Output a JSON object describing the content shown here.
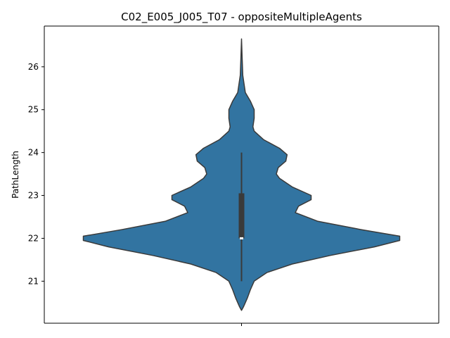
{
  "chart_data": {
    "type": "violin",
    "title": "C02_E005_J005_T07 - oppositeMultipleAgents",
    "xlabel": "",
    "ylabel": "PathLength",
    "ylim": [
      20.02,
      26.95
    ],
    "yticks": [
      21,
      22,
      23,
      24,
      25,
      26
    ],
    "grid": false,
    "legend": "none",
    "colors": {
      "violin": "#3274a1",
      "edge": "#3a3a3a",
      "box": "#3a3a3a",
      "median": "#ffffff"
    },
    "series": [
      {
        "density_profile": [
          [
            20.32,
            0.0
          ],
          [
            20.4,
            0.03
          ],
          [
            20.6,
            0.09
          ],
          [
            20.8,
            0.14
          ],
          [
            21.0,
            0.2
          ],
          [
            21.2,
            0.4
          ],
          [
            21.4,
            0.8
          ],
          [
            21.6,
            1.4
          ],
          [
            21.8,
            2.1
          ],
          [
            21.95,
            2.5
          ],
          [
            22.05,
            2.5
          ],
          [
            22.2,
            1.9
          ],
          [
            22.4,
            1.2
          ],
          [
            22.6,
            0.85
          ],
          [
            22.75,
            0.9
          ],
          [
            22.9,
            1.1
          ],
          [
            23.0,
            1.1
          ],
          [
            23.2,
            0.8
          ],
          [
            23.4,
            0.6
          ],
          [
            23.5,
            0.55
          ],
          [
            23.65,
            0.58
          ],
          [
            23.8,
            0.7
          ],
          [
            23.95,
            0.72
          ],
          [
            24.1,
            0.6
          ],
          [
            24.3,
            0.35
          ],
          [
            24.5,
            0.2
          ],
          [
            24.6,
            0.18
          ],
          [
            24.8,
            0.2
          ],
          [
            25.0,
            0.2
          ],
          [
            25.2,
            0.14
          ],
          [
            25.4,
            0.06
          ],
          [
            25.6,
            0.04
          ],
          [
            25.8,
            0.02
          ],
          [
            26.2,
            0.01
          ],
          [
            26.65,
            0.0
          ]
        ],
        "whisker_low": 21.0,
        "q1": 22.0,
        "median": 22.0,
        "q3": 23.05,
        "whisker_high": 24.0
      }
    ]
  }
}
